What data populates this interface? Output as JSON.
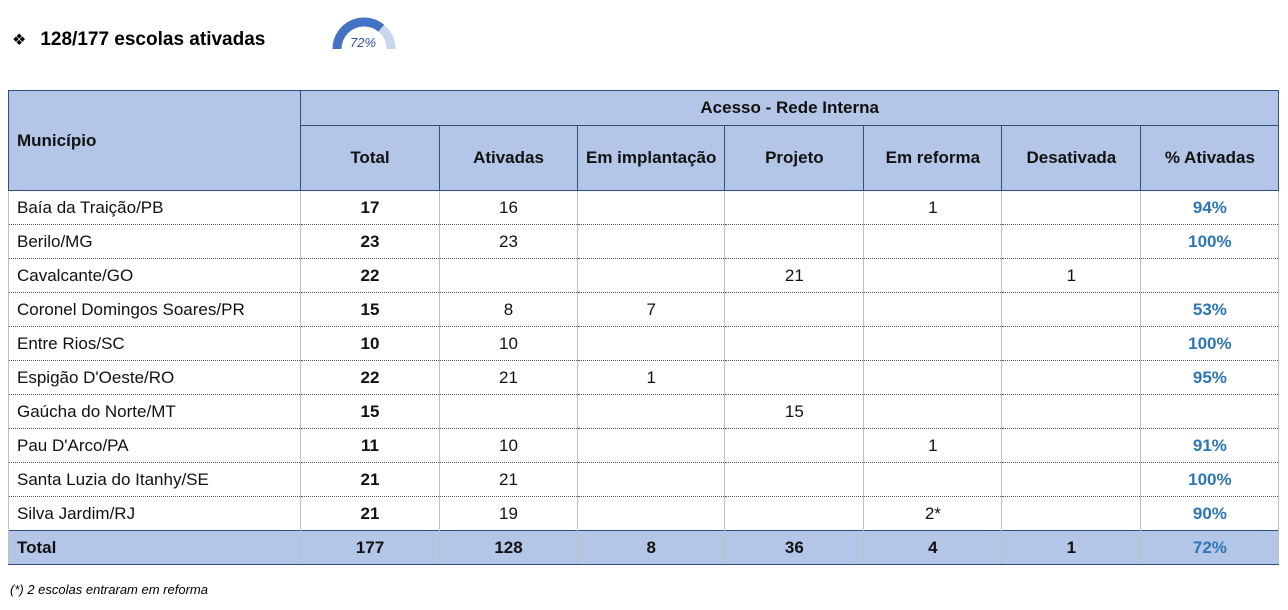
{
  "header": {
    "title": "128/177 escolas ativadas",
    "gauge": {
      "value": 72,
      "label": "72%"
    }
  },
  "table": {
    "first_column": "Município",
    "group_header": "Acesso - Rede Interna",
    "columns": [
      "Total",
      "Ativadas",
      "Em implantação",
      "Projeto",
      "Em reforma",
      "Desativada",
      "% Ativadas"
    ],
    "rows": [
      [
        "Baía da Traição/PB",
        17,
        16,
        null,
        null,
        1,
        null,
        "94%"
      ],
      [
        "Berilo/MG",
        23,
        23,
        null,
        null,
        null,
        null,
        "100%"
      ],
      [
        "Cavalcante/GO",
        22,
        null,
        null,
        21,
        null,
        1,
        null
      ],
      [
        "Coronel Domingos Soares/PR",
        15,
        8,
        7,
        null,
        null,
        null,
        "53%"
      ],
      [
        "Entre Rios/SC",
        10,
        10,
        null,
        null,
        null,
        null,
        "100%"
      ],
      [
        "Espigão D'Oeste/RO",
        22,
        21,
        1,
        null,
        null,
        null,
        "95%"
      ],
      [
        "Gaúcha do Norte/MT",
        15,
        null,
        null,
        15,
        null,
        null,
        null
      ],
      [
        "Pau D'Arco/PA",
        11,
        10,
        null,
        null,
        1,
        null,
        "91%"
      ],
      [
        "Santa Luzia do Itanhy/SE",
        21,
        21,
        null,
        null,
        null,
        null,
        "100%"
      ],
      [
        "Silva Jardim/RJ",
        21,
        19,
        null,
        null,
        "2*",
        null,
        "90%"
      ]
    ],
    "total": [
      "Total",
      177,
      128,
      8,
      36,
      4,
      1,
      "72%"
    ]
  },
  "footnote": "(*) 2 escolas entraram em reforma"
}
